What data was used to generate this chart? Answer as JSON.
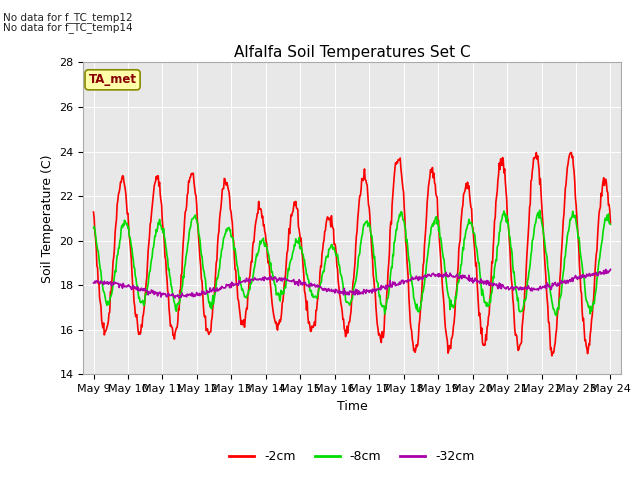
{
  "title": "Alfalfa Soil Temperatures Set C",
  "xlabel": "Time",
  "ylabel": "Soil Temperature (C)",
  "ylim": [
    14,
    28
  ],
  "bg_color": "#e8e8e8",
  "plot_bg_light": "#f0f0f0",
  "annotations": [
    "No data for f_TC_temp12",
    "No data for f_TC_temp14"
  ],
  "legend_box_label": "TA_met",
  "xtick_labels": [
    "May 9",
    "May 10",
    "May 11",
    "May 12",
    "May 13",
    "May 14",
    "May 15",
    "May 16",
    "May 17",
    "May 18",
    "May 19",
    "May 20",
    "May 21",
    "May 22",
    "May 23",
    "May 24"
  ],
  "red_label": "-2cm",
  "green_label": "-8cm",
  "purple_label": "-32cm",
  "red_color": "#ff0000",
  "green_color": "#00dd00",
  "purple_color": "#aa00aa",
  "lw": 1.2,
  "yticks": [
    14,
    16,
    18,
    20,
    22,
    24,
    26,
    28
  ],
  "n_days": 16,
  "title_fontsize": 11,
  "label_fontsize": 9,
  "tick_fontsize": 8,
  "legend_fontsize": 9
}
